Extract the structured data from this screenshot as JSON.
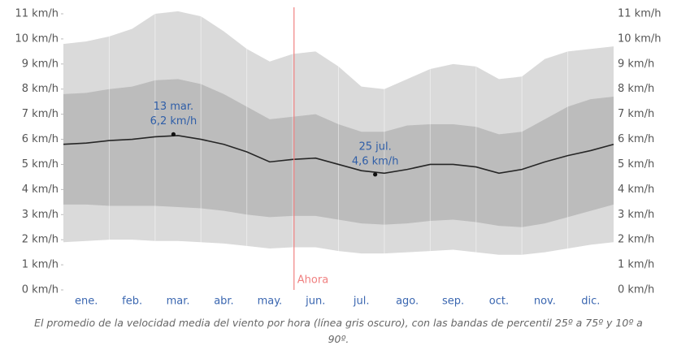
{
  "chart_data": {
    "type": "area",
    "caption": "El promedio de la velocidad media del viento por hora (línea gris oscuro), con las bandas de percentil 25º a 75º y 10º a 90º.",
    "x": [
      0,
      0.5,
      1,
      1.5,
      2,
      2.5,
      3,
      3.5,
      4,
      4.5,
      5,
      5.5,
      6,
      6.5,
      7,
      7.5,
      8,
      8.5,
      9,
      9.5,
      10,
      10.5,
      11,
      11.5,
      12
    ],
    "xlim": [
      0,
      12
    ],
    "xticks": [
      {
        "value": 0.5,
        "label": "ene."
      },
      {
        "value": 1.5,
        "label": "feb."
      },
      {
        "value": 2.5,
        "label": "mar."
      },
      {
        "value": 3.5,
        "label": "abr."
      },
      {
        "value": 4.5,
        "label": "may."
      },
      {
        "value": 5.5,
        "label": "jun."
      },
      {
        "value": 6.5,
        "label": "jul."
      },
      {
        "value": 7.5,
        "label": "ago."
      },
      {
        "value": 8.5,
        "label": "sep."
      },
      {
        "value": 9.5,
        "label": "oct."
      },
      {
        "value": 10.5,
        "label": "nov."
      },
      {
        "value": 11.5,
        "label": "dic."
      }
    ],
    "ylim": [
      0,
      11
    ],
    "yticks": [
      {
        "value": 0,
        "label": "0 km/h"
      },
      {
        "value": 1,
        "label": "1 km/h"
      },
      {
        "value": 2,
        "label": "2 km/h"
      },
      {
        "value": 3,
        "label": "3 km/h"
      },
      {
        "value": 4,
        "label": "4 km/h"
      },
      {
        "value": 5,
        "label": "5 km/h"
      },
      {
        "value": 6,
        "label": "6 km/h"
      },
      {
        "value": 7,
        "label": "7 km/h"
      },
      {
        "value": 8,
        "label": "8 km/h"
      },
      {
        "value": 9,
        "label": "9 km/h"
      },
      {
        "value": 10,
        "label": "10 km/h"
      },
      {
        "value": 11,
        "label": "11 km/h"
      }
    ],
    "bands": [
      {
        "color": "#dadada",
        "lower": [
          1.9,
          1.95,
          2.0,
          2.0,
          1.95,
          1.95,
          1.9,
          1.85,
          1.75,
          1.65,
          1.7,
          1.7,
          1.55,
          1.45,
          1.45,
          1.5,
          1.55,
          1.6,
          1.5,
          1.4,
          1.4,
          1.5,
          1.65,
          1.8,
          1.9
        ],
        "upper": [
          9.8,
          9.9,
          10.1,
          10.4,
          11.0,
          11.1,
          10.9,
          10.3,
          9.6,
          9.1,
          9.4,
          9.5,
          8.9,
          8.1,
          8.0,
          8.4,
          8.8,
          9.0,
          8.9,
          8.4,
          8.5,
          9.2,
          9.5,
          9.6,
          9.7
        ]
      },
      {
        "color": "#bcbcbc",
        "lower": [
          3.4,
          3.4,
          3.35,
          3.35,
          3.35,
          3.3,
          3.25,
          3.15,
          3.0,
          2.9,
          2.95,
          2.95,
          2.8,
          2.65,
          2.6,
          2.65,
          2.75,
          2.8,
          2.7,
          2.55,
          2.5,
          2.65,
          2.9,
          3.15,
          3.4
        ],
        "upper": [
          7.8,
          7.85,
          8.0,
          8.1,
          8.35,
          8.4,
          8.2,
          7.8,
          7.3,
          6.8,
          6.9,
          7.0,
          6.6,
          6.3,
          6.3,
          6.55,
          6.6,
          6.6,
          6.5,
          6.2,
          6.3,
          6.8,
          7.3,
          7.6,
          7.7
        ]
      }
    ],
    "series": [
      {
        "color": "#262626",
        "values": [
          5.8,
          5.85,
          5.95,
          6.0,
          6.1,
          6.15,
          6.0,
          5.8,
          5.5,
          5.1,
          5.2,
          5.25,
          5.0,
          4.75,
          4.65,
          4.8,
          5.0,
          5.0,
          4.9,
          4.65,
          4.8,
          5.1,
          5.35,
          5.55,
          5.8
        ]
      }
    ],
    "annotations": [
      {
        "x": 2.4,
        "value": 6.2,
        "text": "13 mar.",
        "value_label": "6,2 km/h"
      },
      {
        "x": 6.8,
        "value": 4.6,
        "text": "25 jul.",
        "value_label": "4,6 km/h"
      }
    ],
    "now": {
      "x": 5.03,
      "label": "Ahora",
      "color": "#f08080"
    }
  }
}
